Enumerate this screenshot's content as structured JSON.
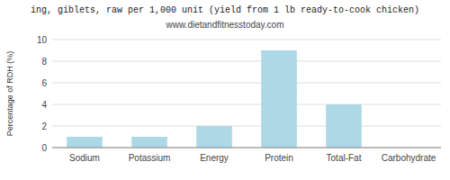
{
  "chart_data": {
    "type": "bar",
    "title": "ing, giblets, raw per 1,000 unit (yield from 1 lb ready-to-cook chicken)",
    "subtitle": "www.dietandfitnesstoday.com",
    "categories": [
      "Sodium",
      "Potassium",
      "Energy",
      "Protein",
      "Total-Fat",
      "Carbohydrate"
    ],
    "values": [
      1.0,
      1.0,
      2.0,
      9.0,
      4.0,
      0.0
    ],
    "color": "#add8e6",
    "ylabel": "Percentage of RDH (%)",
    "ylim": [
      0,
      10
    ],
    "yticks": [
      0,
      2,
      4,
      6,
      8,
      10
    ],
    "grid": true
  }
}
